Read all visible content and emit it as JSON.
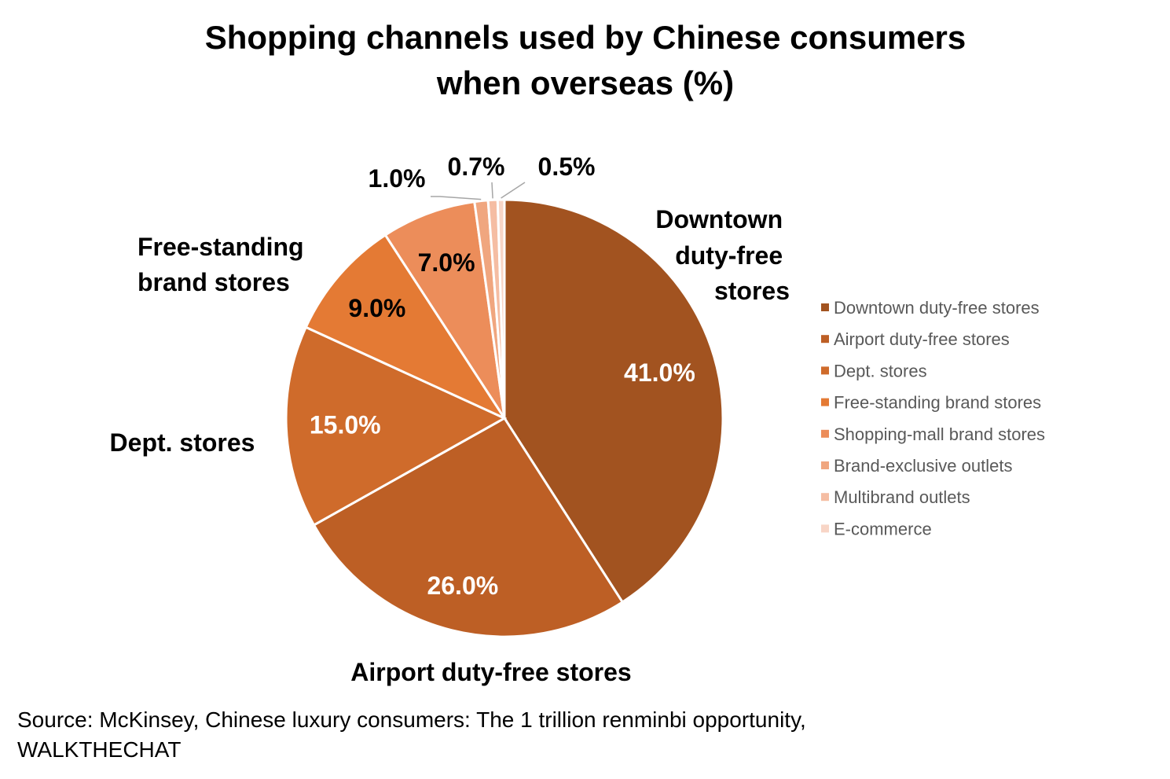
{
  "chart_data": {
    "type": "pie",
    "title": [
      "Shopping channels used by Chinese consumers",
      "when overseas (%)"
    ],
    "categories": [
      "Downtown duty-free stores",
      "Airport duty-free stores",
      "Dept. stores",
      "Free-standing brand stores",
      "Shopping-mall brand stores",
      "Brand-exclusive outlets",
      "Multibrand outlets",
      "E-commerce"
    ],
    "values": [
      41.0,
      26.0,
      15.0,
      9.0,
      7.0,
      1.0,
      0.7,
      0.5
    ],
    "value_labels": [
      "41.0%",
      "26.0%",
      "15.0%",
      "9.0%",
      "7.0%",
      "1.0%",
      "0.7%",
      "0.5%"
    ],
    "category_labels": [
      [
        "Downtown",
        "duty-free",
        "stores"
      ],
      [
        "Airport duty-free stores"
      ],
      [
        "Dept. stores"
      ],
      [
        "Free-standing",
        "brand stores"
      ]
    ],
    "colors": [
      "#a25320",
      "#bd5f25",
      "#cf6b2b",
      "#e47a34",
      "#ec8d5a",
      "#f0a67f",
      "#f5bda3",
      "#f8d5c6"
    ],
    "legend_position": "right",
    "start_angle": "top, clockwise"
  },
  "source": {
    "line1": "Source: McKinsey, Chinese luxury consumers: The 1 trillion renminbi opportunity,",
    "line2": "WALKTHECHAT"
  }
}
